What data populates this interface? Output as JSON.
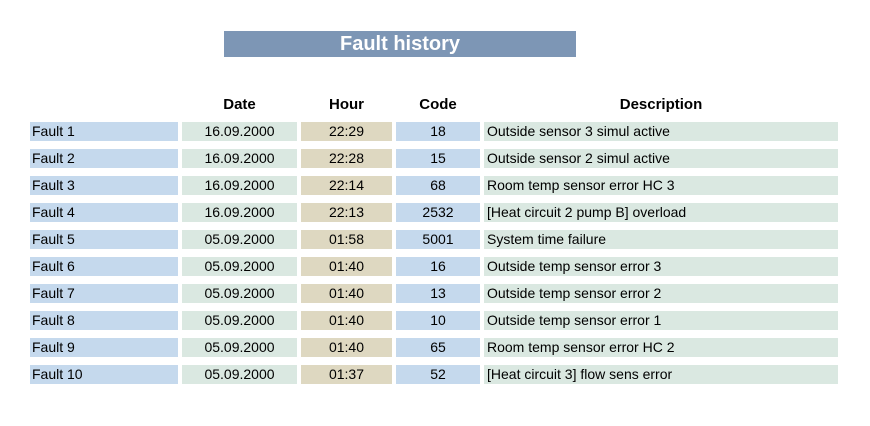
{
  "title": "Fault history",
  "table": {
    "headers": {
      "date": "Date",
      "hour": "Hour",
      "code": "Code",
      "description": "Description"
    },
    "rows": [
      {
        "label": "Fault 1",
        "date": "16.09.2000",
        "hour": "22:29",
        "code": "18",
        "description": "Outside sensor 3 simul active"
      },
      {
        "label": "Fault 2",
        "date": "16.09.2000",
        "hour": "22:28",
        "code": "15",
        "description": "Outside sensor 2 simul active"
      },
      {
        "label": "Fault 3",
        "date": "16.09.2000",
        "hour": "22:14",
        "code": "68",
        "description": "Room temp sensor error HC 3"
      },
      {
        "label": "Fault 4",
        "date": "16.09.2000",
        "hour": "22:13",
        "code": "2532",
        "description": "[Heat circuit 2 pump B] overload"
      },
      {
        "label": "Fault 5",
        "date": "05.09.2000",
        "hour": "01:58",
        "code": "5001",
        "description": "System time failure"
      },
      {
        "label": "Fault 6",
        "date": "05.09.2000",
        "hour": "01:40",
        "code": "16",
        "description": "Outside temp sensor error 3"
      },
      {
        "label": "Fault 7",
        "date": "05.09.2000",
        "hour": "01:40",
        "code": "13",
        "description": "Outside temp sensor error 2"
      },
      {
        "label": "Fault 8",
        "date": "05.09.2000",
        "hour": "01:40",
        "code": "10",
        "description": "Outside temp sensor error 1"
      },
      {
        "label": "Fault 9",
        "date": "05.09.2000",
        "hour": "01:40",
        "code": "65",
        "description": "Room temp sensor error HC 2"
      },
      {
        "label": "Fault 10",
        "date": "05.09.2000",
        "hour": "01:37",
        "code": "52",
        "description": "[Heat circuit 3] flow sens error"
      }
    ]
  },
  "colors": {
    "title_bar": "#7D96B5",
    "title_text": "#FFFFFF",
    "label_cell": "#C5D9ED",
    "date_cell": "#DAE8E1",
    "hour_cell": "#DED8C1",
    "code_cell": "#C5D9ED",
    "description_cell": "#DAE8E1",
    "cell_text": "#000000"
  }
}
